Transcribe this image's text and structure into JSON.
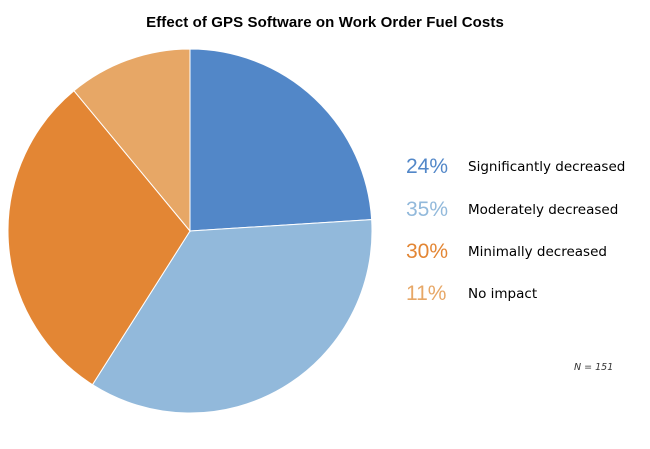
{
  "chart_data": {
    "type": "pie",
    "title": "Effect of GPS Software on Work Order Fuel Costs",
    "slices": [
      {
        "label": "Significantly decreased",
        "value": 24,
        "value_label": "24%",
        "color": "#5287c8"
      },
      {
        "label": "Moderately decreased",
        "value": 35,
        "value_label": "35%",
        "color": "#92b9db"
      },
      {
        "label": "Minimally decreased",
        "value": 30,
        "value_label": "30%",
        "color": "#e38634"
      },
      {
        "label": "No impact",
        "value": 11,
        "value_label": "11%",
        "color": "#e7a766"
      }
    ],
    "start_angle_deg": 0,
    "direction": "clockwise",
    "legend_position": "right",
    "note": "N = 151"
  }
}
